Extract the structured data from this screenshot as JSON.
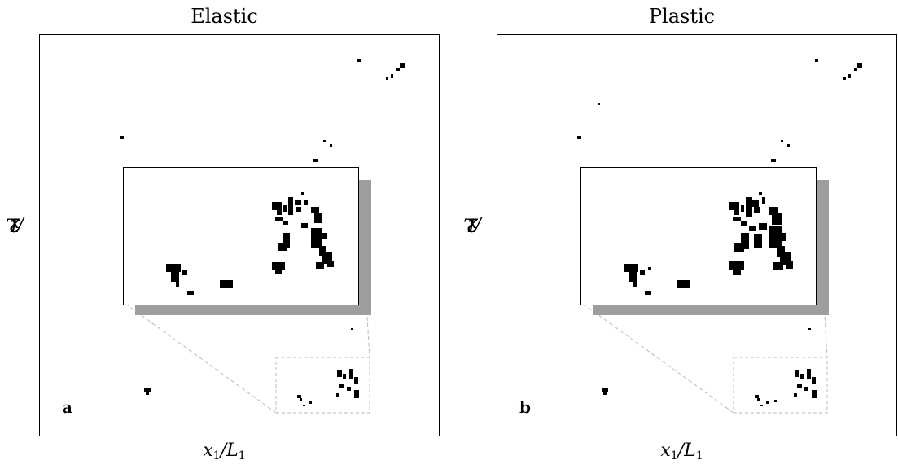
{
  "panels": [
    {
      "title": "Elastic",
      "letter": "a",
      "xlabel_main": "x",
      "xlabel_sub1": "1",
      "xlabel_mid": "/L",
      "xlabel_sub2": "1",
      "ylabel_main": "x",
      "ylabel_sub1": "2",
      "ylabel_mid": "/L",
      "ylabel_sub2": "2"
    },
    {
      "title": "Plastic",
      "letter": "b",
      "xlabel_main": "x",
      "xlabel_sub1": "1",
      "xlabel_mid": "/L",
      "xlabel_sub2": "1",
      "ylabel_main": "x",
      "ylabel_sub1": "2",
      "ylabel_mid": "/L",
      "ylabel_sub2": "2"
    }
  ],
  "colors": {
    "cluster": "#000000",
    "shadow": "#9e9e9e",
    "guide": "#bbbbbb",
    "background": "#ffffff"
  }
}
